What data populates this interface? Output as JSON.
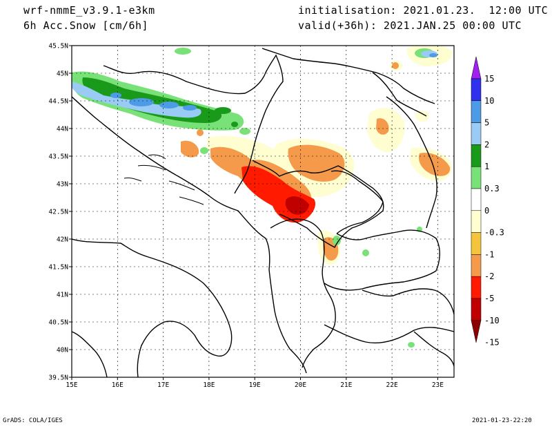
{
  "header": {
    "model": "wrf-nmmE_v3.9.1-e3km",
    "field": "6h Acc.Snow [cm/6h]",
    "init": "initialisation: 2021.01.23.  12:00 UTC",
    "valid": "valid(+36h): 2021.JAN.25 00:00 UTC"
  },
  "footer": {
    "left": "GrADS: COLA/IGES",
    "right": "2021-01-23-22:20"
  },
  "axes": {
    "lat_labels": [
      "45.5N",
      "45N",
      "44.5N",
      "44N",
      "43.5N",
      "43N",
      "42.5N",
      "42N",
      "41.5N",
      "41N",
      "40.5N",
      "40N",
      "39.5N"
    ],
    "lon_labels": [
      "15E",
      "16E",
      "17E",
      "18E",
      "19E",
      "20E",
      "21E",
      "22E",
      "23E"
    ]
  },
  "colorbar": {
    "labels": [
      "15",
      "10",
      "5",
      "2",
      "1",
      "0.3",
      "0",
      "-0.3",
      "-1",
      "-2",
      "-5",
      "-10",
      "-15"
    ],
    "colors": [
      "#a020f0",
      "#3030ee",
      "#4d9be6",
      "#9acbf5",
      "#1a9a1a",
      "#78e278",
      "#ffffff",
      "#fefed0",
      "#f4c43c",
      "#f49a4a",
      "#ff1a00",
      "#c00000",
      "#8b0000"
    ]
  },
  "colors": {
    "orange": "#f49a4a",
    "yellow": "#f4c43c",
    "paleyellow": "#fefed0",
    "red": "#ff1a00",
    "darkred": "#c00000",
    "green": "#1a9a1a",
    "lightgreen": "#78e278",
    "lightblue": "#9acbf5",
    "blue": "#4d9be6"
  }
}
